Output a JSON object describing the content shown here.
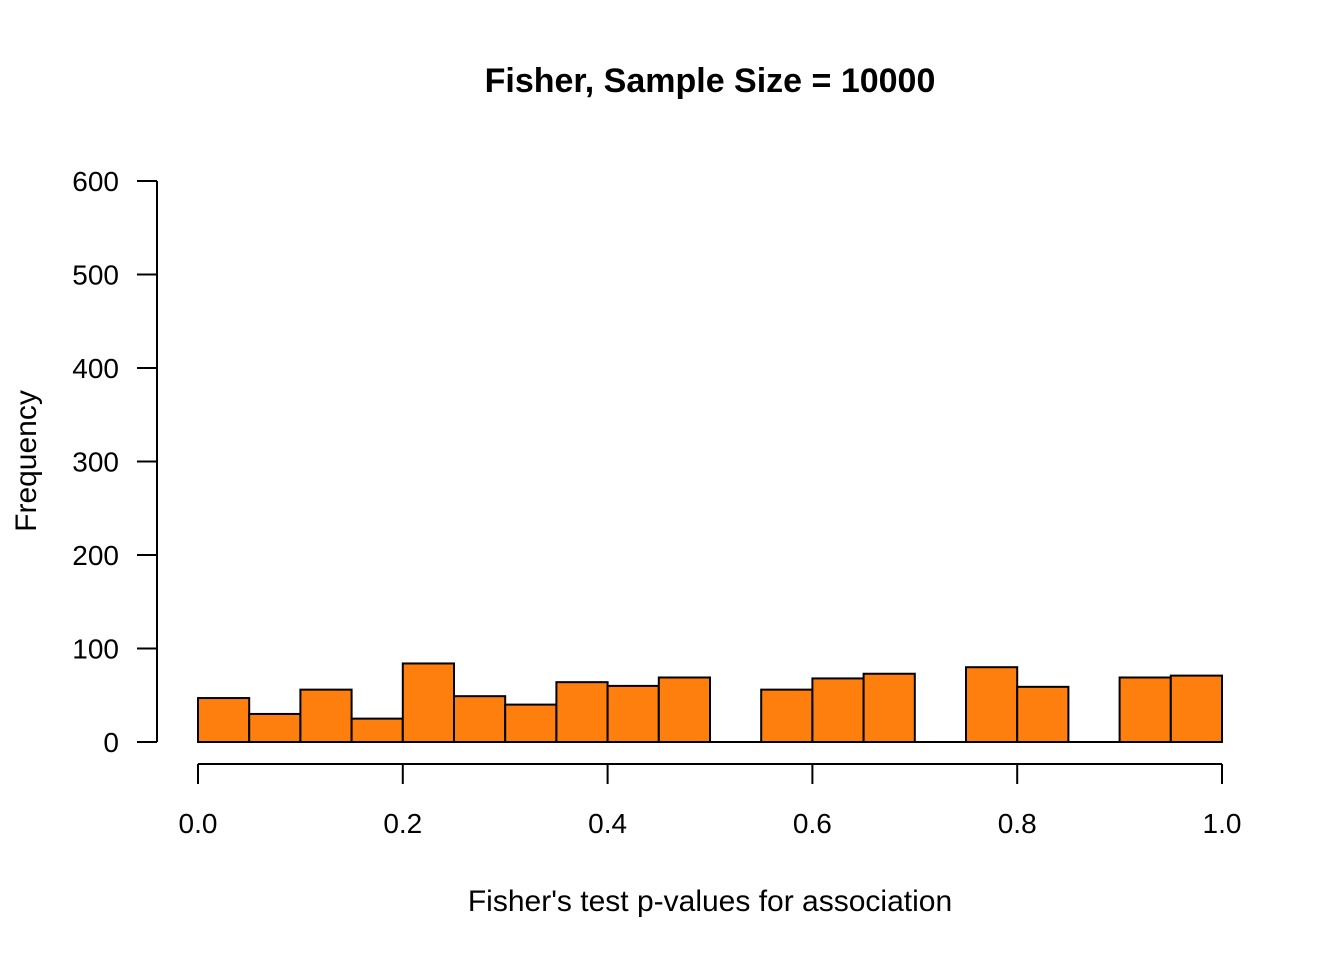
{
  "chart_data": {
    "type": "bar",
    "title": "Fisher, Sample Size = 10000",
    "xlabel": "Fisher's test p-values for association",
    "ylabel": "Frequency",
    "xlim": [
      0,
      1
    ],
    "ylim": [
      0,
      600
    ],
    "bar_color": "#ff7f0e",
    "grid": false,
    "x_ticks": [
      "0.0",
      "0.2",
      "0.4",
      "0.6",
      "0.8",
      "1.0"
    ],
    "y_ticks": [
      "0",
      "100",
      "200",
      "300",
      "400",
      "500",
      "600"
    ],
    "bin_width": 0.05,
    "bin_starts": [
      0.0,
      0.05,
      0.1,
      0.15,
      0.2,
      0.25,
      0.3,
      0.35,
      0.4,
      0.45,
      0.5,
      0.55,
      0.6,
      0.65,
      0.7,
      0.75,
      0.8,
      0.85,
      0.9,
      0.95
    ],
    "values": [
      47,
      30,
      56,
      25,
      84,
      49,
      40,
      64,
      60,
      69,
      0,
      56,
      68,
      73,
      0,
      80,
      59,
      0,
      69,
      71
    ]
  }
}
